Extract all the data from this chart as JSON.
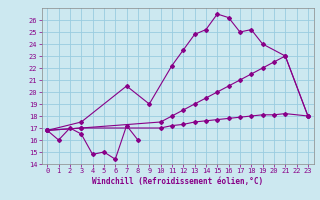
{
  "background_color": "#cce8f0",
  "grid_color": "#99cce0",
  "line_color": "#880088",
  "xlim": [
    -0.5,
    23.5
  ],
  "ylim": [
    14,
    27
  ],
  "xticks": [
    0,
    1,
    2,
    3,
    4,
    5,
    6,
    7,
    8,
    9,
    10,
    11,
    12,
    13,
    14,
    15,
    16,
    17,
    18,
    19,
    20,
    21,
    22,
    23
  ],
  "yticks": [
    14,
    15,
    16,
    17,
    18,
    19,
    20,
    21,
    22,
    23,
    24,
    25,
    26
  ],
  "xlabel": "Windchill (Refroidissement éolien,°C)",
  "xlabel_fontsize": 5.5,
  "tick_fontsize": 5.0,
  "series": [
    {
      "x": [
        0,
        1,
        2,
        3,
        4,
        5,
        6,
        7,
        8
      ],
      "y": [
        16.8,
        16.0,
        17.0,
        16.5,
        14.8,
        15.0,
        14.4,
        17.2,
        16.0
      ]
    },
    {
      "x": [
        0,
        3,
        7,
        9,
        11,
        12,
        13,
        14,
        15,
        16,
        17,
        18,
        19,
        21,
        23
      ],
      "y": [
        16.8,
        17.5,
        20.5,
        19.0,
        22.2,
        23.5,
        24.8,
        25.2,
        26.5,
        26.2,
        25.0,
        25.2,
        24.0,
        23.0,
        18.0
      ]
    },
    {
      "x": [
        0,
        3,
        10,
        11,
        12,
        13,
        14,
        15,
        16,
        17,
        18,
        19,
        20,
        21,
        23
      ],
      "y": [
        16.8,
        17.0,
        17.5,
        18.0,
        18.5,
        19.0,
        19.5,
        20.0,
        20.5,
        21.0,
        21.5,
        22.0,
        22.5,
        23.0,
        18.0
      ]
    },
    {
      "x": [
        0,
        3,
        10,
        11,
        12,
        13,
        14,
        15,
        16,
        17,
        18,
        19,
        20,
        21,
        23
      ],
      "y": [
        16.8,
        17.0,
        17.0,
        17.2,
        17.3,
        17.5,
        17.6,
        17.7,
        17.8,
        17.9,
        18.0,
        18.1,
        18.1,
        18.2,
        18.0
      ]
    }
  ]
}
